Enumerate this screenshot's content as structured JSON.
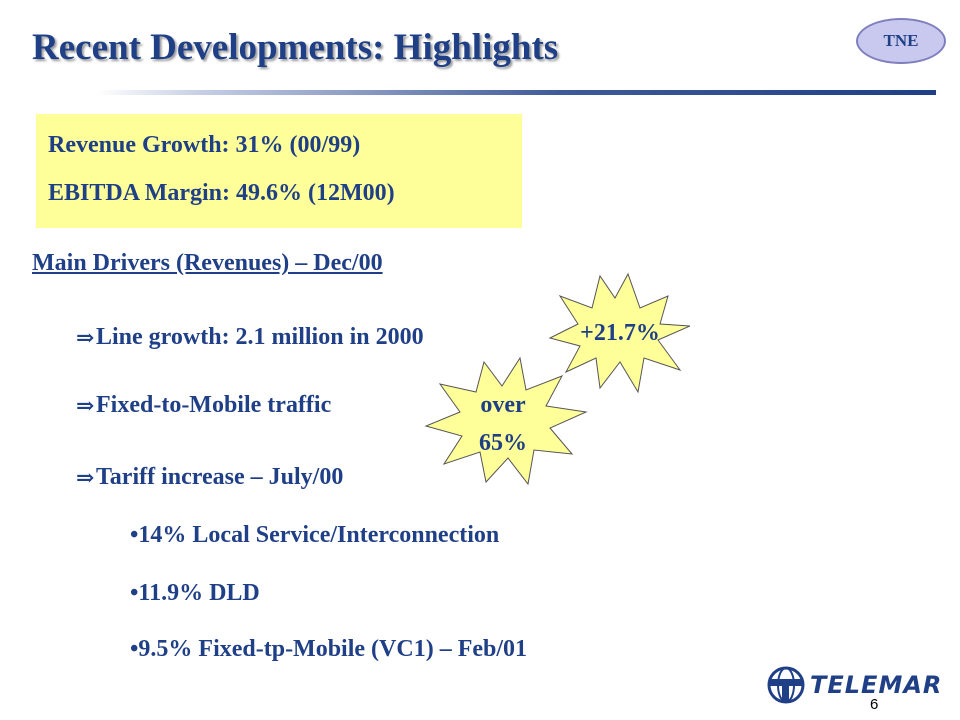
{
  "slide": {
    "title": "Recent Developments: Highlights",
    "badge": "TNE",
    "highlights": [
      "Revenue Growth: 31% (00/99)",
      "EBITDA Margin: 49.6% (12M00)"
    ],
    "section_heading": "Main Drivers (Revenues) – Dec/00",
    "drivers": [
      "Line growth: 2.1 million in 2000",
      "Fixed-to-Mobile traffic",
      "Tariff increase – July/00"
    ],
    "arrow_glyph": "⇒",
    "sub_items": [
      "•14% Local Service/Interconnection",
      "•11.9% DLD",
      "•9.5% Fixed-tp-Mobile (VC1) – Feb/01"
    ],
    "callouts": {
      "line_growth": "+21.7%",
      "fixed_mobile_line1": "over",
      "fixed_mobile_line2": "65%"
    },
    "logo_text": "TELEMAR",
    "page_number": "6"
  },
  "colors": {
    "title": "#1f3f86",
    "highlight_bg": "#ffff99",
    "burst_fill": "#ffff99",
    "badge_fill": "#c9c9ef"
  }
}
